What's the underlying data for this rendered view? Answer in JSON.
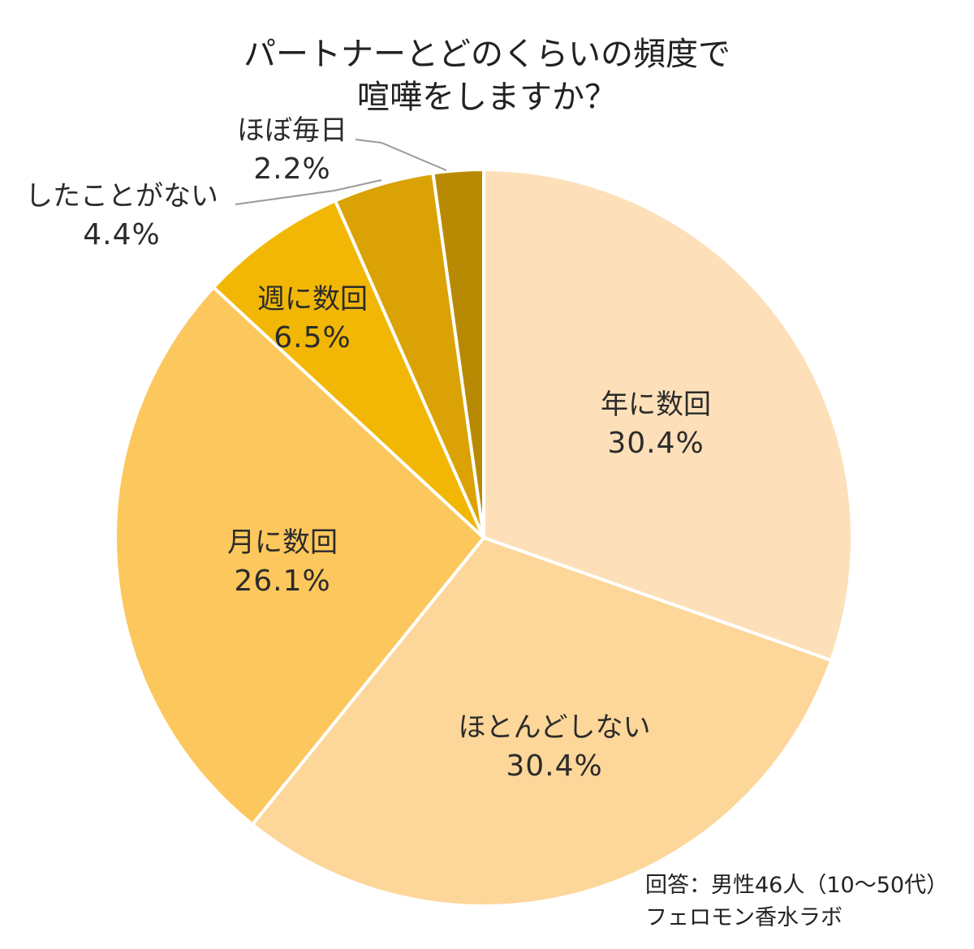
{
  "chart_data": {
    "type": "pie",
    "title_lines": [
      "パートナーとどのくらいの頻度で",
      "喧嘩をしますか？"
    ],
    "slices": [
      {
        "label": "年に数回",
        "value": 30.4,
        "display": "30.4%",
        "color": "#FDE0B9"
      },
      {
        "label": "ほとんどしない",
        "value": 30.4,
        "display": "30.4%",
        "color": "#FDD699"
      },
      {
        "label": "月に数回",
        "value": 26.1,
        "display": "26.1%",
        "color": "#FCC75C"
      },
      {
        "label": "週に数回",
        "value": 6.5,
        "display": "6.5%",
        "color": "#F1B704"
      },
      {
        "label": "したことがない",
        "value": 4.4,
        "display": "4.4%",
        "color": "#DAA204"
      },
      {
        "label": "ほぼ毎日",
        "value": 2.2,
        "display": "2.2%",
        "color": "#B88A03"
      }
    ],
    "notes": [
      "回答：男性46人（10～50代）",
      "フェロモン香水ラボ"
    ]
  }
}
